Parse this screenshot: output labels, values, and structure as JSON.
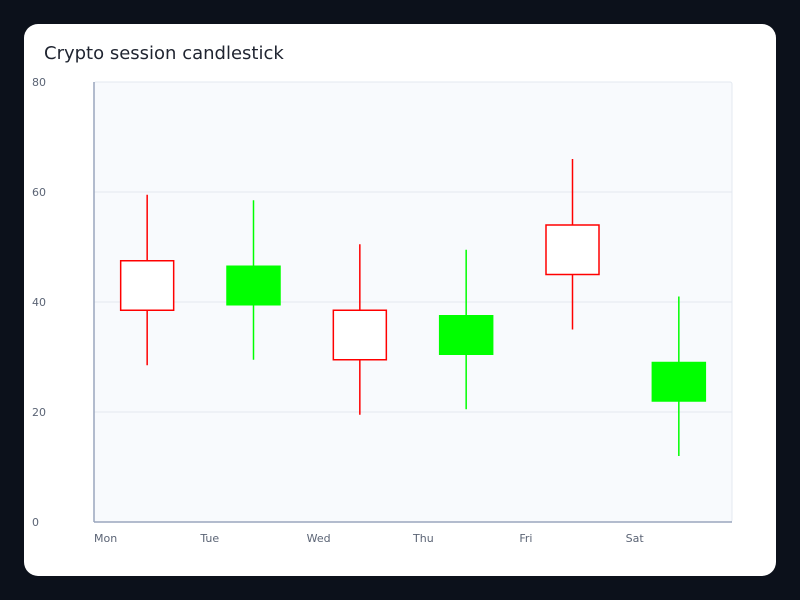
{
  "chart_data": {
    "type": "candlestick",
    "title": "Crypto session candlestick",
    "categories": [
      "Mon",
      "Tue",
      "Wed",
      "Thu",
      "Fri",
      "Sat"
    ],
    "ylim": [
      0,
      80
    ],
    "yticks": [
      0,
      20,
      40,
      60,
      80
    ],
    "grid": true,
    "series": [
      {
        "values": [
          {
            "open": 47.5,
            "high": 59.5,
            "low": 28.5,
            "close": 38.5
          },
          {
            "open": 39.5,
            "high": 58.5,
            "low": 29.5,
            "close": 46.5
          },
          {
            "open": 38.5,
            "high": 50.5,
            "low": 19.5,
            "close": 29.5
          },
          {
            "open": 30.5,
            "high": 49.5,
            "low": 20.5,
            "close": 37.5
          },
          {
            "open": 54.0,
            "high": 66.0,
            "low": 35.0,
            "close": 45.0
          },
          {
            "open": 22.0,
            "high": 41.0,
            "low": 12.0,
            "close": 29.0
          }
        ]
      }
    ]
  },
  "colors": {
    "up": "#00ff00",
    "down": "#ff0000",
    "plot_bg": "#f8fafd",
    "grid": "#e3e8f0",
    "axis": "#9aa6bd"
  }
}
